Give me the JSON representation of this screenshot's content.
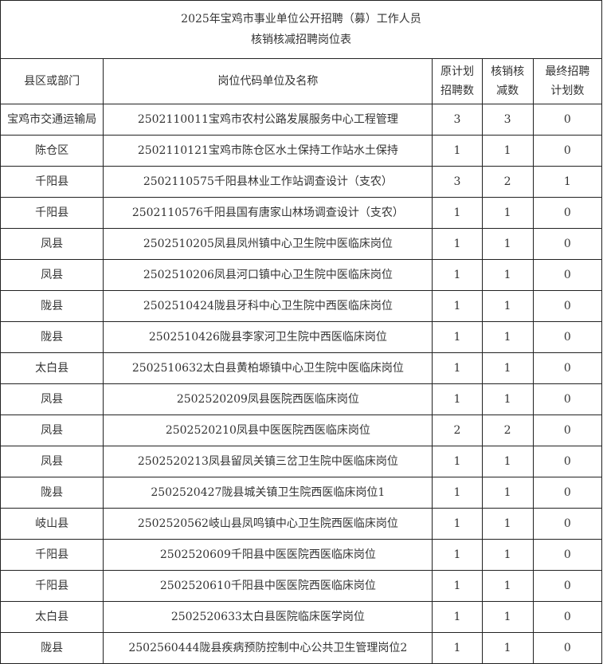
{
  "title": {
    "line1": "2025年宝鸡市事业单位公开招聘（募）工作人员",
    "line2": "核销核减招聘岗位表"
  },
  "headers": {
    "district": "县区或部门",
    "position": "岗位代码单位及名称",
    "original_a": "原计划",
    "original_b": "招聘数",
    "reduced_a": "核销核",
    "reduced_b": "减数",
    "final_a": "最终招聘",
    "final_b": "计划数"
  },
  "rows": [
    {
      "district": "宝鸡市交通运输局",
      "position": "2502110011宝鸡市农村公路发展服务中心工程管理",
      "original": "3",
      "reduced": "3",
      "final": "0"
    },
    {
      "district": "陈仓区",
      "position": "2502110121宝鸡市陈仓区水土保持工作站水土保持",
      "original": "1",
      "reduced": "1",
      "final": "0"
    },
    {
      "district": "千阳县",
      "position": "2502110575千阳县林业工作站调查设计（支农）",
      "original": "3",
      "reduced": "2",
      "final": "1"
    },
    {
      "district": "千阳县",
      "position": "2502110576千阳县国有唐家山林场调查设计（支农）",
      "original": "1",
      "reduced": "1",
      "final": "0"
    },
    {
      "district": "凤县",
      "position": "2502510205凤县凤州镇中心卫生院中医临床岗位",
      "original": "1",
      "reduced": "1",
      "final": "0"
    },
    {
      "district": "凤县",
      "position": "2502510206凤县河口镇中心卫生院中医临床岗位",
      "original": "1",
      "reduced": "1",
      "final": "0"
    },
    {
      "district": "陇县",
      "position": "2502510424陇县牙科中心卫生院中西医临床岗位",
      "original": "1",
      "reduced": "1",
      "final": "0"
    },
    {
      "district": "陇县",
      "position": "2502510426陇县李家河卫生院中西医临床岗位",
      "original": "1",
      "reduced": "1",
      "final": "0"
    },
    {
      "district": "太白县",
      "position": "2502510632太白县黄柏塬镇中心卫生院中医临床岗位",
      "original": "1",
      "reduced": "1",
      "final": "0"
    },
    {
      "district": "凤县",
      "position": "2502520209凤县医院西医临床岗位",
      "original": "1",
      "reduced": "1",
      "final": "0"
    },
    {
      "district": "凤县",
      "position": "2502520210凤县中医医院西医临床岗位",
      "original": "2",
      "reduced": "2",
      "final": "0"
    },
    {
      "district": "凤县",
      "position": "2502520213凤县留凤关镇三岔卫生院中医临床岗位",
      "original": "1",
      "reduced": "1",
      "final": "0"
    },
    {
      "district": "陇县",
      "position": "2502520427陇县城关镇卫生院西医临床岗位1",
      "original": "1",
      "reduced": "1",
      "final": "0"
    },
    {
      "district": "岐山县",
      "position": "2502520562岐山县凤鸣镇中心卫生院西医临床岗位",
      "original": "1",
      "reduced": "1",
      "final": "0"
    },
    {
      "district": "千阳县",
      "position": "2502520609千阳县中医医院西医临床岗位",
      "original": "1",
      "reduced": "1",
      "final": "0"
    },
    {
      "district": "千阳县",
      "position": "2502520610千阳县中医医院西医临床岗位",
      "original": "1",
      "reduced": "1",
      "final": "0"
    },
    {
      "district": "太白县",
      "position": "2502520633太白县医院临床医学岗位",
      "original": "1",
      "reduced": "1",
      "final": "0"
    },
    {
      "district": "陇县",
      "position": "2502560444陇县疾病预防控制中心公共卫生管理岗位2",
      "original": "1",
      "reduced": "1",
      "final": "0"
    }
  ]
}
